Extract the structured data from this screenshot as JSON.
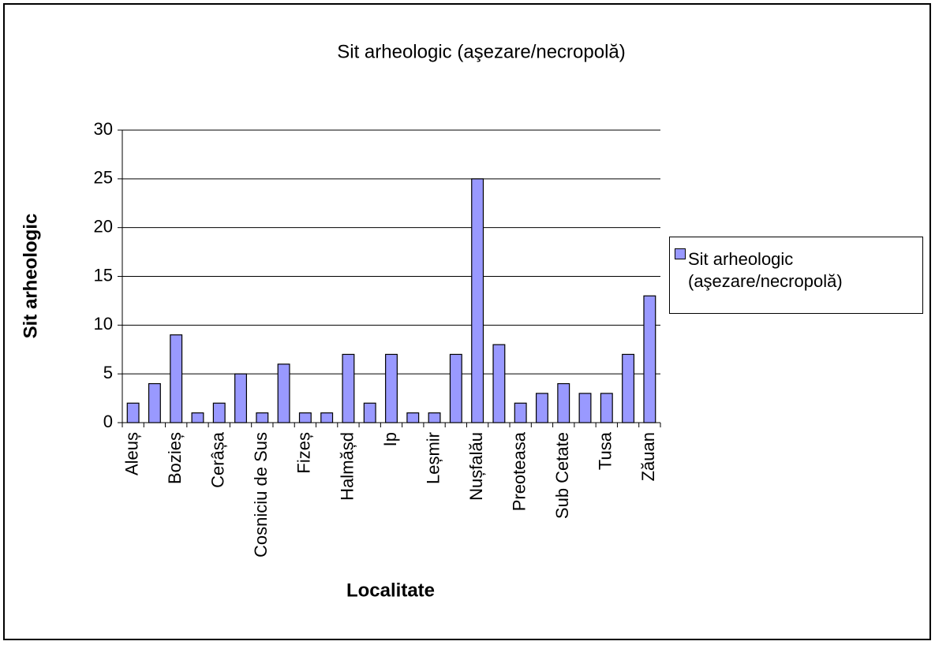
{
  "chart_data": {
    "type": "bar",
    "title": "Sit arheologic (aşezare/necropolă)",
    "x_label": "Localitate",
    "y_label": "Sit arheologic",
    "categories": [
      "Aleuș",
      null,
      "Bozieș",
      null,
      "Cerâșa",
      null,
      "Cosniciu de Sus",
      null,
      "Fizeș",
      null,
      "Halmășd",
      null,
      "Ip",
      null,
      "Leșmir",
      null,
      "Nușfalău",
      null,
      "Preoteasa",
      null,
      "Sub Cetate",
      null,
      "Tusa",
      null,
      "Zăuan"
    ],
    "series": [
      {
        "name": "Sit arheologic (aşezare/necropolă)",
        "color": "#9999ff",
        "values": [
          2,
          4,
          9,
          1,
          2,
          5,
          1,
          6,
          1,
          1,
          7,
          2,
          7,
          1,
          1,
          7,
          25,
          8,
          2,
          3,
          4,
          3,
          3,
          7,
          13
        ]
      }
    ],
    "ylim": [
      0,
      30
    ],
    "yticks": [
      0,
      5,
      10,
      15,
      20,
      25,
      30
    ],
    "grid": true,
    "legend": "right"
  }
}
